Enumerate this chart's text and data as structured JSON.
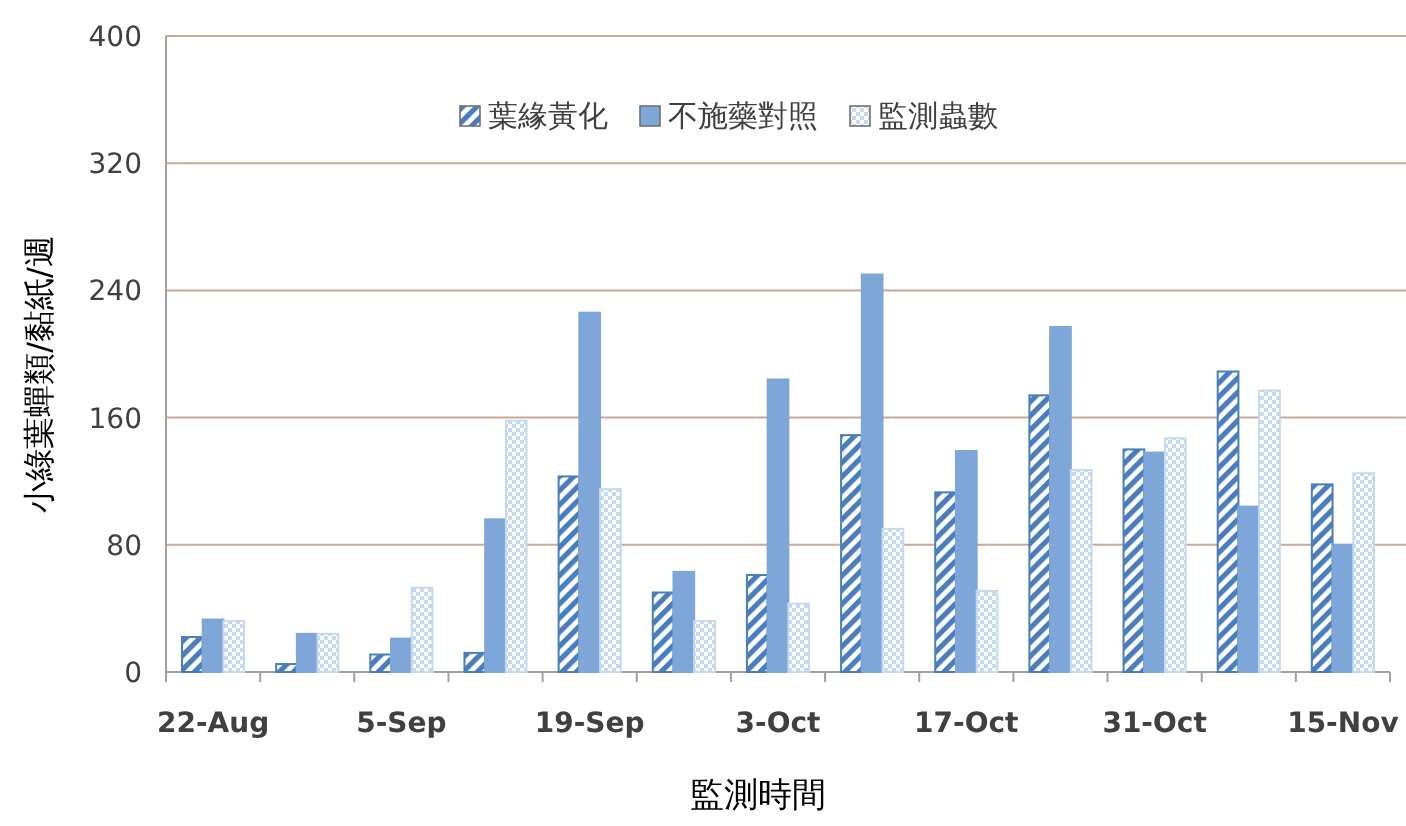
{
  "chart_data": {
    "type": "bar",
    "xlabel": "監測時間",
    "ylabel": "小綠葉蟬類/黏紙/週",
    "categories": [
      "22-Aug",
      null,
      "5-Sep",
      null,
      "19-Sep",
      null,
      "3-Oct",
      null,
      "17-Oct",
      null,
      "31-Oct",
      null,
      "15-Nov"
    ],
    "series": [
      {
        "name": "葉緣黃化",
        "color": "#4a7ebb",
        "values": [
          22,
          5,
          11,
          12,
          123,
          50,
          61,
          149,
          113,
          174,
          140,
          189,
          118
        ]
      },
      {
        "name": "不施藥對照",
        "color": "#7ea6d8",
        "values": [
          33,
          24,
          21,
          96,
          226,
          63,
          184,
          250,
          139,
          217,
          138,
          104,
          80
        ]
      },
      {
        "name": "監測蟲數",
        "color": "#c5d9f1",
        "values": [
          32,
          24,
          53,
          158,
          115,
          32,
          43,
          90,
          51,
          127,
          147,
          177,
          125
        ]
      }
    ],
    "ylim": [
      0,
      400
    ],
    "yticks": [
      0,
      80,
      160,
      240,
      320,
      400
    ],
    "grid": "y",
    "legend": "top"
  }
}
